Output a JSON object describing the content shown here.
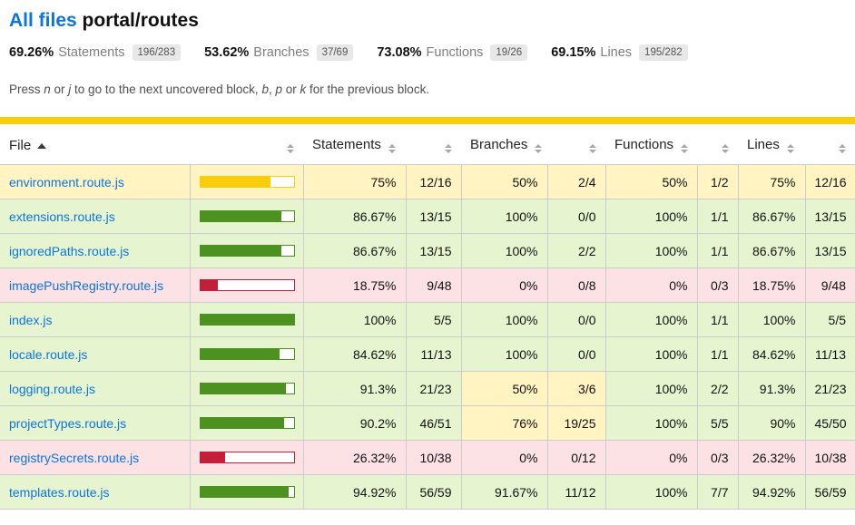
{
  "header": {
    "breadcrumb_link": "All files",
    "current_path": "portal/routes"
  },
  "summary": [
    {
      "pct": "69.26%",
      "label": "Statements",
      "fraction": "196/283"
    },
    {
      "pct": "53.62%",
      "label": "Branches",
      "fraction": "37/69"
    },
    {
      "pct": "73.08%",
      "label": "Functions",
      "fraction": "19/26"
    },
    {
      "pct": "69.15%",
      "label": "Lines",
      "fraction": "195/282"
    }
  ],
  "hint": {
    "p1": "Press ",
    "k1": "n",
    "p2": " or ",
    "k2": "j",
    "p3": " to go to the next uncovered block, ",
    "k3": "b",
    "p4": ", ",
    "k4": "p",
    "p5": " or ",
    "k5": "k",
    "p6": " for the previous block."
  },
  "table": {
    "columns": [
      "File",
      "Statements",
      "Branches",
      "Functions",
      "Lines"
    ],
    "rows": [
      {
        "file": "environment.route.js",
        "bar_pct": 75,
        "status": {
          "file": "medium",
          "statements": "medium",
          "branches": "medium",
          "functions": "medium",
          "lines": "medium"
        },
        "statements": {
          "pct": "75%",
          "frac": "12/16"
        },
        "branches": {
          "pct": "50%",
          "frac": "2/4"
        },
        "functions": {
          "pct": "50%",
          "frac": "1/2"
        },
        "lines": {
          "pct": "75%",
          "frac": "12/16"
        }
      },
      {
        "file": "extensions.route.js",
        "bar_pct": 86.67,
        "status": {
          "file": "high",
          "statements": "high",
          "branches": "high",
          "functions": "high",
          "lines": "high"
        },
        "statements": {
          "pct": "86.67%",
          "frac": "13/15"
        },
        "branches": {
          "pct": "100%",
          "frac": "0/0"
        },
        "functions": {
          "pct": "100%",
          "frac": "1/1"
        },
        "lines": {
          "pct": "86.67%",
          "frac": "13/15"
        }
      },
      {
        "file": "ignoredPaths.route.js",
        "bar_pct": 86.67,
        "status": {
          "file": "high",
          "statements": "high",
          "branches": "high",
          "functions": "high",
          "lines": "high"
        },
        "statements": {
          "pct": "86.67%",
          "frac": "13/15"
        },
        "branches": {
          "pct": "100%",
          "frac": "2/2"
        },
        "functions": {
          "pct": "100%",
          "frac": "1/1"
        },
        "lines": {
          "pct": "86.67%",
          "frac": "13/15"
        }
      },
      {
        "file": "imagePushRegistry.route.js",
        "bar_pct": 18.75,
        "status": {
          "file": "low",
          "statements": "low",
          "branches": "low",
          "functions": "low",
          "lines": "low"
        },
        "statements": {
          "pct": "18.75%",
          "frac": "9/48"
        },
        "branches": {
          "pct": "0%",
          "frac": "0/8"
        },
        "functions": {
          "pct": "0%",
          "frac": "0/3"
        },
        "lines": {
          "pct": "18.75%",
          "frac": "9/48"
        }
      },
      {
        "file": "index.js",
        "bar_pct": 100,
        "status": {
          "file": "high",
          "statements": "high",
          "branches": "high",
          "functions": "high",
          "lines": "high"
        },
        "statements": {
          "pct": "100%",
          "frac": "5/5"
        },
        "branches": {
          "pct": "100%",
          "frac": "0/0"
        },
        "functions": {
          "pct": "100%",
          "frac": "1/1"
        },
        "lines": {
          "pct": "100%",
          "frac": "5/5"
        }
      },
      {
        "file": "locale.route.js",
        "bar_pct": 84.62,
        "status": {
          "file": "high",
          "statements": "high",
          "branches": "high",
          "functions": "high",
          "lines": "high"
        },
        "statements": {
          "pct": "84.62%",
          "frac": "11/13"
        },
        "branches": {
          "pct": "100%",
          "frac": "0/0"
        },
        "functions": {
          "pct": "100%",
          "frac": "1/1"
        },
        "lines": {
          "pct": "84.62%",
          "frac": "11/13"
        }
      },
      {
        "file": "logging.route.js",
        "bar_pct": 91.3,
        "status": {
          "file": "high",
          "statements": "high",
          "branches": "medium",
          "functions": "high",
          "lines": "high"
        },
        "statements": {
          "pct": "91.3%",
          "frac": "21/23"
        },
        "branches": {
          "pct": "50%",
          "frac": "3/6"
        },
        "functions": {
          "pct": "100%",
          "frac": "2/2"
        },
        "lines": {
          "pct": "91.3%",
          "frac": "21/23"
        }
      },
      {
        "file": "projectTypes.route.js",
        "bar_pct": 90.2,
        "status": {
          "file": "high",
          "statements": "high",
          "branches": "medium",
          "functions": "high",
          "lines": "high"
        },
        "statements": {
          "pct": "90.2%",
          "frac": "46/51"
        },
        "branches": {
          "pct": "76%",
          "frac": "19/25"
        },
        "functions": {
          "pct": "100%",
          "frac": "5/5"
        },
        "lines": {
          "pct": "90%",
          "frac": "45/50"
        }
      },
      {
        "file": "registrySecrets.route.js",
        "bar_pct": 26.32,
        "status": {
          "file": "low",
          "statements": "low",
          "branches": "low",
          "functions": "low",
          "lines": "low"
        },
        "statements": {
          "pct": "26.32%",
          "frac": "10/38"
        },
        "branches": {
          "pct": "0%",
          "frac": "0/12"
        },
        "functions": {
          "pct": "0%",
          "frac": "0/3"
        },
        "lines": {
          "pct": "26.32%",
          "frac": "10/38"
        }
      },
      {
        "file": "templates.route.js",
        "bar_pct": 94.92,
        "status": {
          "file": "high",
          "statements": "high",
          "branches": "high",
          "functions": "high",
          "lines": "high"
        },
        "statements": {
          "pct": "94.92%",
          "frac": "56/59"
        },
        "branches": {
          "pct": "91.67%",
          "frac": "11/12"
        },
        "functions": {
          "pct": "100%",
          "frac": "7/7"
        },
        "lines": {
          "pct": "94.92%",
          "frac": "56/59"
        }
      }
    ]
  },
  "colors": {
    "status_line": "#f9cd0b",
    "link": "#0b74de",
    "high_bg": "#e6f5d0",
    "medium_bg": "#fff4c2",
    "low_bg": "#fce1e5",
    "high_fill": "#4d9221",
    "medium_fill": "#f9cd0b",
    "low_fill": "#c21f39"
  }
}
